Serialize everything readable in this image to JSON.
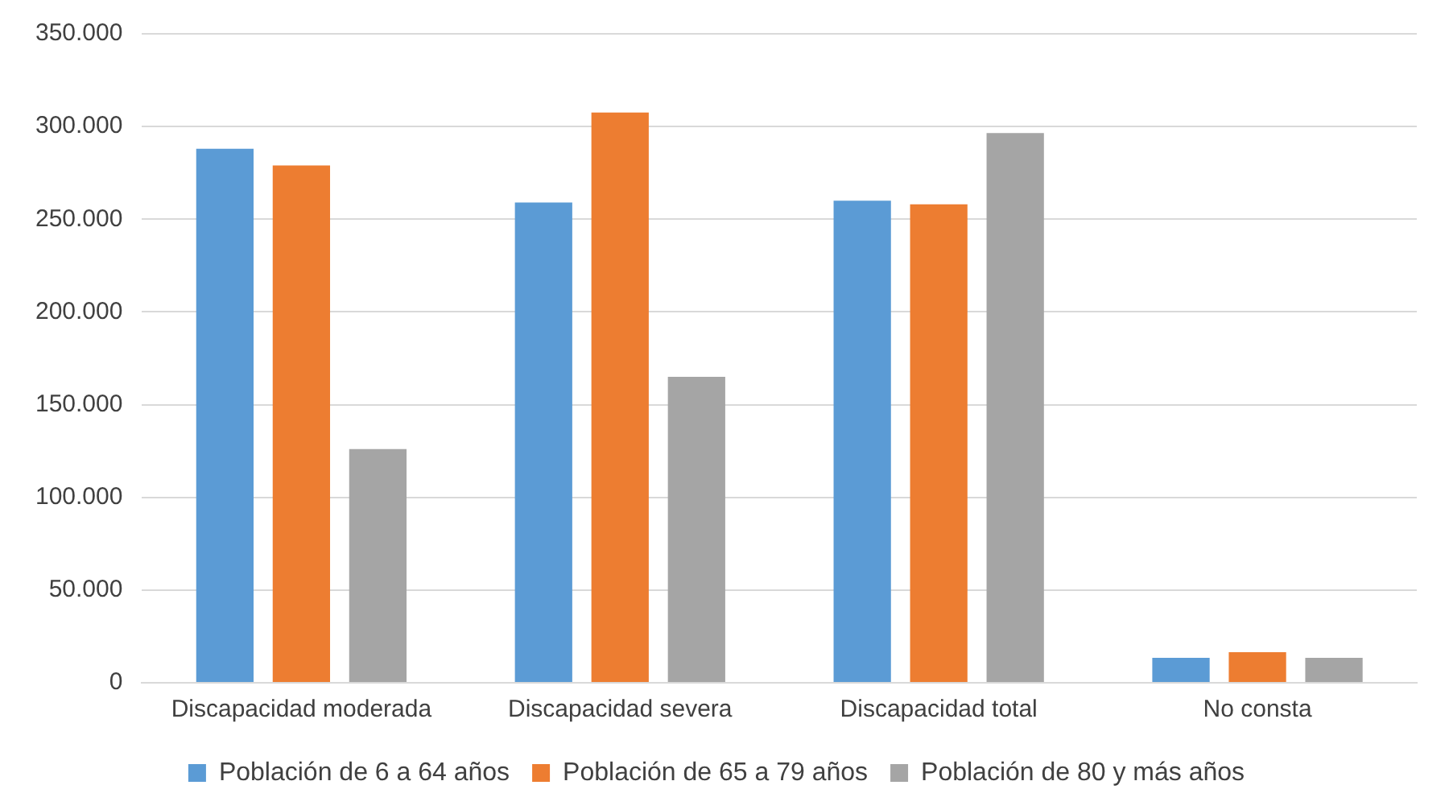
{
  "chart_data": {
    "type": "bar",
    "categories": [
      "Discapacidad moderada",
      "Discapacidad severa",
      "Discapacidad total",
      "No consta"
    ],
    "series": [
      {
        "name": "Población de 6 a 64 años",
        "color": "#5b9bd5",
        "values": [
          288000,
          259000,
          260000,
          13500
        ]
      },
      {
        "name": "Población de 65 a 79 años",
        "color": "#ed7d31",
        "values": [
          279000,
          307500,
          258000,
          16500
        ]
      },
      {
        "name": "Población de 80 y más años",
        "color": "#a5a5a5",
        "values": [
          126000,
          165000,
          296500,
          13500
        ]
      }
    ],
    "ylim": [
      0,
      350000
    ],
    "yticks": [
      {
        "value": 0,
        "label": "0"
      },
      {
        "value": 50000,
        "label": "50.000"
      },
      {
        "value": 100000,
        "label": "100.000"
      },
      {
        "value": 150000,
        "label": "150.000"
      },
      {
        "value": 200000,
        "label": "200.000"
      },
      {
        "value": 250000,
        "label": "250.000"
      },
      {
        "value": 300000,
        "label": "300.000"
      },
      {
        "value": 350000,
        "label": "350.000"
      }
    ],
    "grid": "y",
    "legend": "bottom"
  }
}
